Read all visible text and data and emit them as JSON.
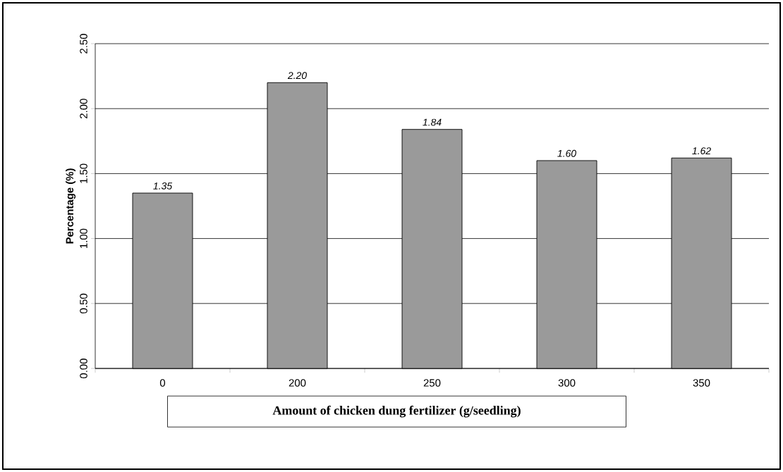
{
  "chart_data": {
    "type": "bar",
    "xlabel": "Amount of chicken dung fertilizer (g/seedling)",
    "ylabel": "Percentage (%)",
    "categories": [
      "0",
      "200",
      "250",
      "300",
      "350"
    ],
    "values": [
      1.35,
      2.2,
      1.84,
      1.6,
      1.62
    ],
    "value_labels": [
      "1.35",
      "2.20",
      "1.84",
      "1.60",
      "1.62"
    ],
    "color": "#9a9a9a",
    "ylim": [
      0,
      2.5
    ],
    "yticks": [
      {
        "value": 0,
        "label": "0.00"
      },
      {
        "value": 0.5,
        "label": "0.50"
      },
      {
        "value": 1,
        "label": "1.00"
      },
      {
        "value": 1.5,
        "label": "1.50"
      },
      {
        "value": 2,
        "label": "2.00"
      },
      {
        "value": 2.5,
        "label": "2.50"
      }
    ],
    "grid": "y"
  }
}
